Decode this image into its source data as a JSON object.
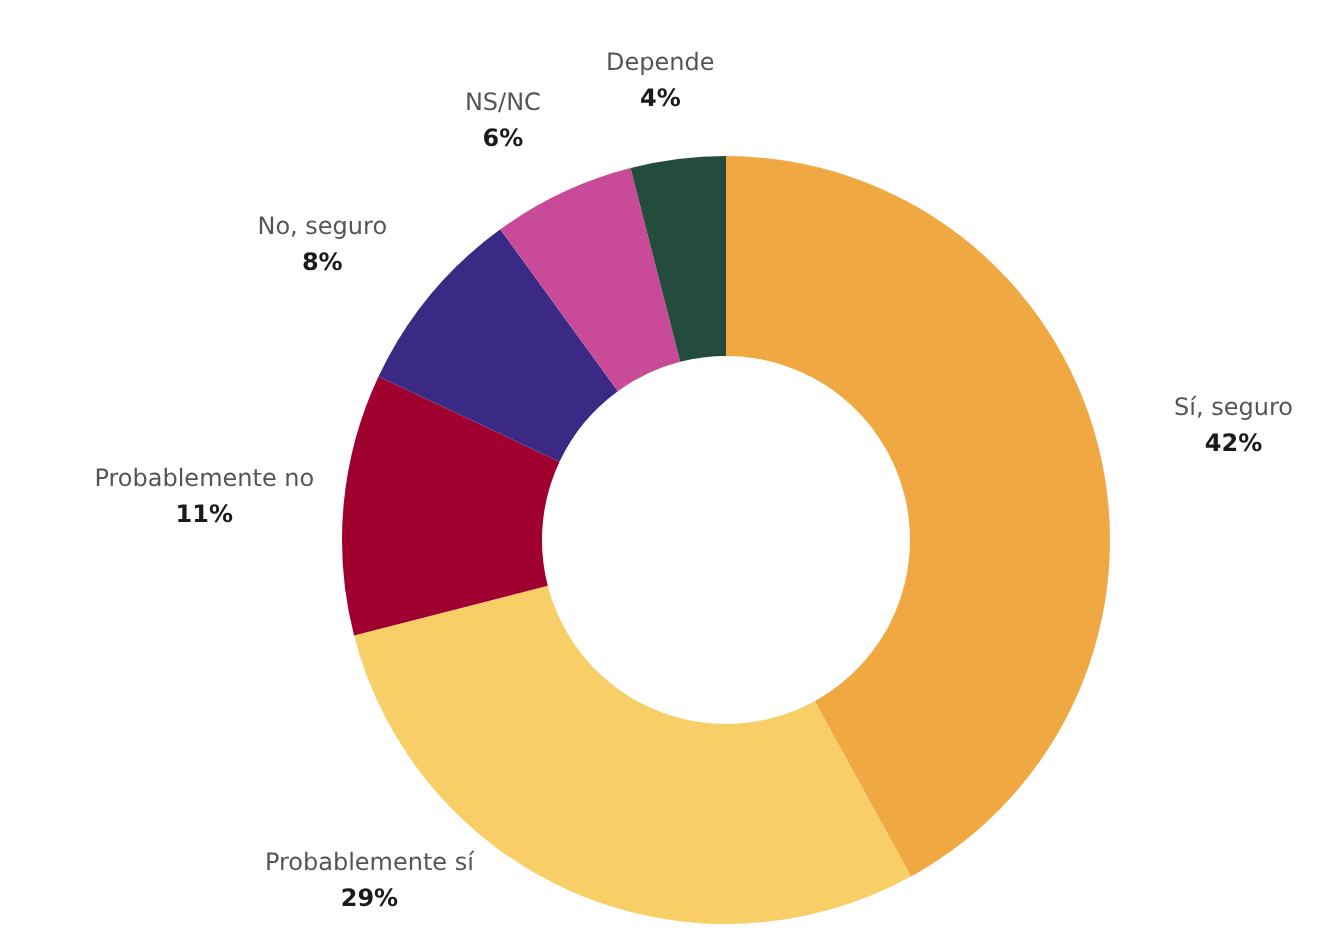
{
  "chart_data": {
    "type": "donut",
    "categories": [
      "Sí, seguro",
      "Probablemente sí",
      "Probablemente no",
      "No, seguro",
      "NS/NC",
      "Depende"
    ],
    "values": [
      42,
      29,
      11,
      8,
      6,
      4
    ],
    "value_labels": [
      "42%",
      "29%",
      "11%",
      "8%",
      "6%",
      "4%"
    ],
    "colors": [
      "#f0a843",
      "#f7cf66",
      "#a0002f",
      "#3a2a85",
      "#c84a98",
      "#234c3c"
    ]
  }
}
